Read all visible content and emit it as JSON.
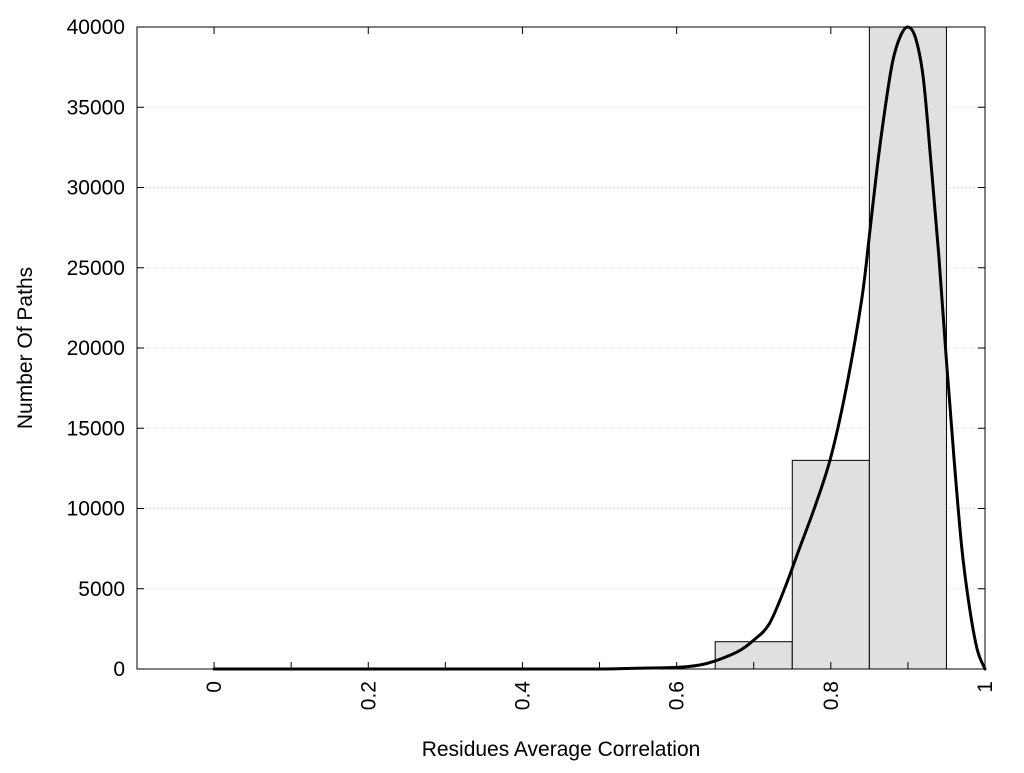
{
  "chart_data": {
    "type": "bar",
    "title": "",
    "xlabel": "Residues Average Correlation",
    "ylabel": "Number Of Paths",
    "xlim": [
      -0.1,
      1.0
    ],
    "ylim": [
      0,
      40000
    ],
    "x_ticks": [
      0,
      0.2,
      0.4,
      0.6,
      0.8,
      1
    ],
    "x_tick_labels": [
      "0",
      "0.2",
      "0.4",
      "0.6",
      "0.8",
      "1"
    ],
    "x_minor_ticks": [
      0.1,
      0.3,
      0.5,
      0.7,
      0.9
    ],
    "y_ticks": [
      0,
      5000,
      10000,
      15000,
      20000,
      25000,
      30000,
      35000,
      40000
    ],
    "y_tick_labels": [
      "0",
      "5000",
      "10000",
      "15000",
      "20000",
      "25000",
      "30000",
      "35000",
      "40000"
    ],
    "grid": "horizontal dotted",
    "bar_color": "#e0e0e0",
    "bar_edge_color": "#000000",
    "line_color": "#000000",
    "bins": [
      {
        "x_start": 0.65,
        "x_end": 0.75,
        "value": 1700
      },
      {
        "x_start": 0.75,
        "x_end": 0.85,
        "value": 13000
      },
      {
        "x_start": 0.85,
        "x_end": 0.95,
        "value": 40000
      }
    ],
    "curve": {
      "x": [
        0.0,
        0.1,
        0.2,
        0.3,
        0.4,
        0.5,
        0.55,
        0.6,
        0.63,
        0.65,
        0.68,
        0.7,
        0.72,
        0.74,
        0.76,
        0.78,
        0.8,
        0.82,
        0.84,
        0.85,
        0.86,
        0.87,
        0.88,
        0.89,
        0.9,
        0.91,
        0.92,
        0.93,
        0.94,
        0.95,
        0.96,
        0.97,
        0.98,
        0.99,
        1.0
      ],
      "y": [
        0,
        0,
        0,
        0,
        0,
        0,
        50,
        100,
        250,
        500,
        1100,
        1800,
        2800,
        5000,
        7600,
        10200,
        13200,
        17500,
        23000,
        27000,
        31200,
        34800,
        37800,
        39400,
        40000,
        39300,
        36800,
        31500,
        25800,
        19200,
        13000,
        7500,
        3800,
        1200,
        0
      ]
    }
  }
}
